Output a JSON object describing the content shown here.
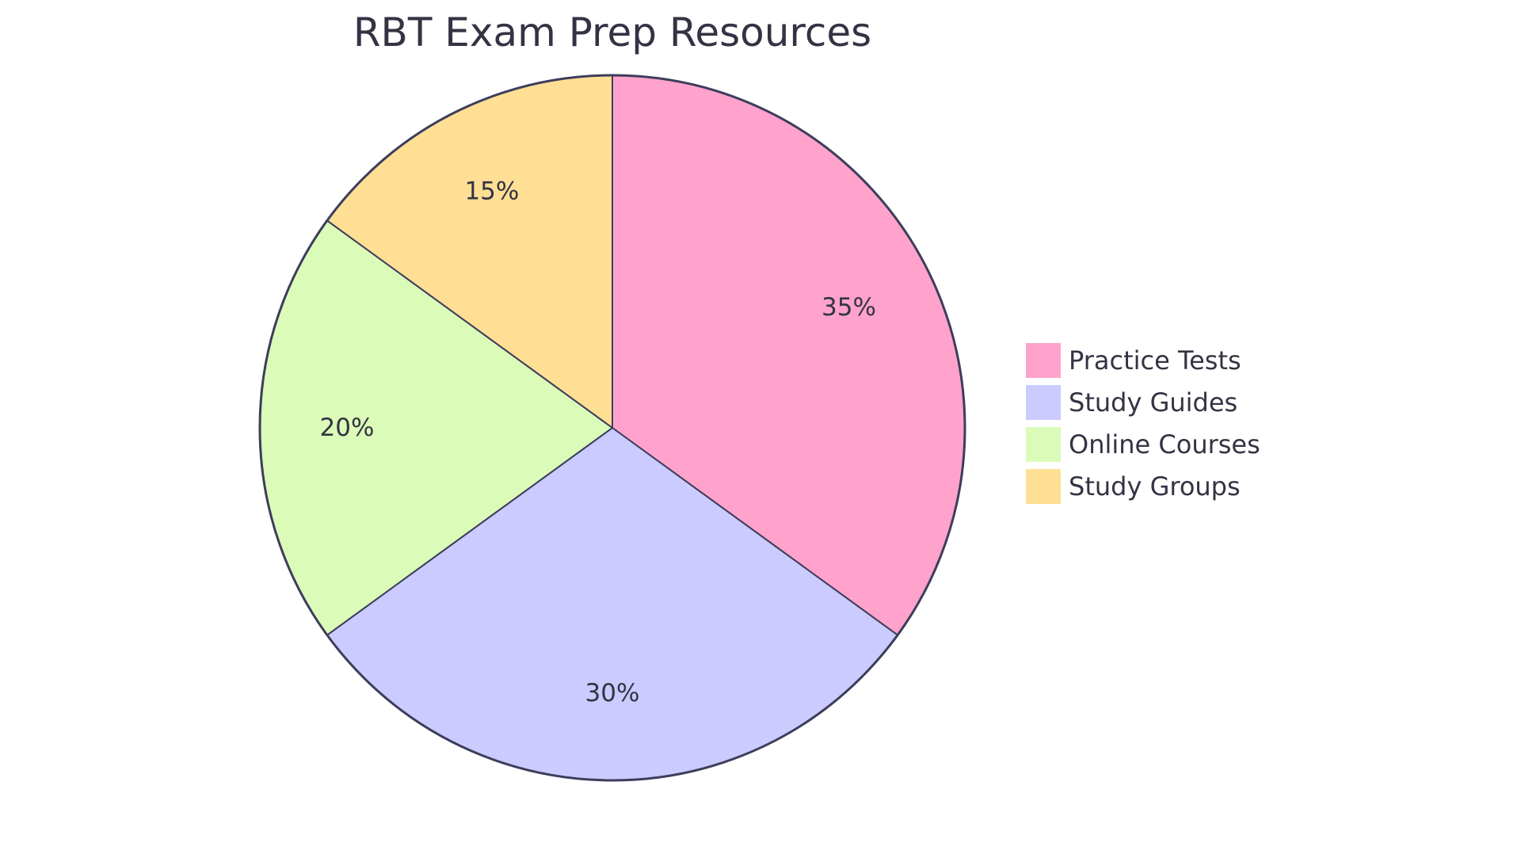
{
  "chart_data": {
    "type": "pie",
    "title": "RBT Exam Prep Resources",
    "legend_position": "right",
    "slices": [
      {
        "label": "Practice Tests",
        "value": 35,
        "display": "35%",
        "color": "#FFA3CC"
      },
      {
        "label": "Study Guides",
        "value": 30,
        "display": "30%",
        "color": "#CBCBFF"
      },
      {
        "label": "Online Courses",
        "value": 20,
        "display": "20%",
        "color": "#DBFBB8"
      },
      {
        "label": "Study Groups",
        "value": 15,
        "display": "15%",
        "color": "#FEDF94"
      }
    ],
    "stroke_color": "#3D3D5C"
  }
}
